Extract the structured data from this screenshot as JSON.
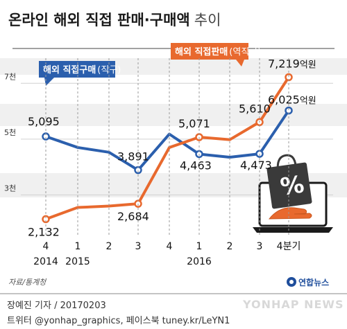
{
  "title": "온라인 해외 직접 판매·구매액",
  "title_suffix": "추이",
  "source": "자료/통계청",
  "brand": "연합뉴스",
  "watermark": "YONHAP NEWS",
  "credit_line1": "장예진 기자 / 20170203",
  "credit_line2": "트위터 @yonhap_graphics, 페이스북 tuney.kr/LeYN1",
  "unit": "억원",
  "chart_data": {
    "type": "line",
    "categories": [
      "4",
      "1",
      "2",
      "3",
      "4",
      "1",
      "2",
      "3",
      "4분기"
    ],
    "year_labels": [
      "2014",
      "2015",
      "",
      "",
      "",
      "2016",
      "",
      "",
      ""
    ],
    "y_ticks": [
      {
        "value": 7000,
        "label": "7천"
      },
      {
        "value": 5000,
        "label": "5천"
      },
      {
        "value": 3000,
        "label": "3천"
      }
    ],
    "ylim": [
      1000,
      8000
    ],
    "series": [
      {
        "name": "해외 직접구매",
        "name_sub": "(직구)",
        "color": "#2b5fad",
        "values": [
          5095,
          4700,
          4530,
          3891,
          5180,
          4463,
          4350,
          4473,
          6025
        ],
        "labels": [
          "5,095",
          "",
          "",
          "3,891",
          "",
          "4,463",
          "",
          "4,473",
          "6,025"
        ]
      },
      {
        "name": "해외 직접판매",
        "name_sub": "(역직구)",
        "color": "#e8692e",
        "values": [
          2132,
          2550,
          2600,
          2684,
          4700,
          5071,
          4980,
          5610,
          7219
        ],
        "labels": [
          "2,132",
          "",
          "",
          "2,684",
          "",
          "5,071",
          "",
          "5,610",
          "7,219"
        ]
      }
    ]
  }
}
